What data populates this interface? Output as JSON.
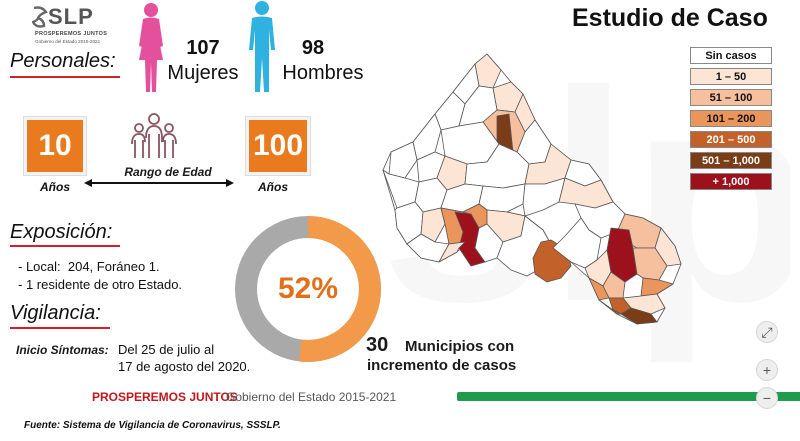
{
  "logo": {
    "text": "SLP",
    "tagline": "PROSPEREMOS JUNTOS",
    "sub": "Gobierno del Estado 2015-2021"
  },
  "title": "Estudio de Caso",
  "personales": {
    "heading": "Personales:",
    "women": {
      "count": "107",
      "label": "Mujeres"
    },
    "men": {
      "count": "98",
      "label": "Hombres"
    }
  },
  "age": {
    "min_value": "10",
    "min_label": "Años",
    "range_label": "Rango de Edad",
    "max_value": "100",
    "max_label": "Años"
  },
  "exposicion": {
    "heading": "Exposición:",
    "line1": "- Local:  204, Foráneo 1.",
    "line2": "- 1 residente de otro Estado."
  },
  "vigilancia": {
    "heading": "Vigilancia:",
    "inicio_label": "Inicio Síntomas:",
    "inicio_text1": "Del 25 de julio al",
    "inicio_text2": "17 de agosto del 2020."
  },
  "donut": {
    "percent_label": "52%",
    "percent_value": 52,
    "fill_color": "#f29a4a",
    "rest_color": "#a9a9a9"
  },
  "municipios": {
    "count": "30",
    "line1": "Municipios con",
    "line2": "incremento de casos"
  },
  "legend": [
    {
      "label": "Sin casos",
      "color": "#ffffff",
      "text_color": "#111111"
    },
    {
      "label": "1 – 50",
      "color": "#fde5d6",
      "text_color": "#111111"
    },
    {
      "label": "51 – 100",
      "color": "#f6c09f",
      "text_color": "#111111"
    },
    {
      "label": "101 – 200",
      "color": "#e9955c",
      "text_color": "#111111"
    },
    {
      "label": "201 – 500",
      "color": "#c3612a",
      "text_color": "#ffffff"
    },
    {
      "label": "501 – 1,000",
      "color": "#7b3d18",
      "text_color": "#ffffff"
    },
    {
      "label": "+ 1,000",
      "color": "#9c111c",
      "text_color": "#ffffff"
    }
  ],
  "footer": {
    "brand": "PROSPEREMOS JUNTOS",
    "gov": "Gobierno del Estado 2015-2021"
  },
  "source": "Fuente: Sistema de Vigilancia de Coronavirus, SSSLP.",
  "zoom": {
    "fit": "⤢",
    "in": "+",
    "out": "−"
  }
}
